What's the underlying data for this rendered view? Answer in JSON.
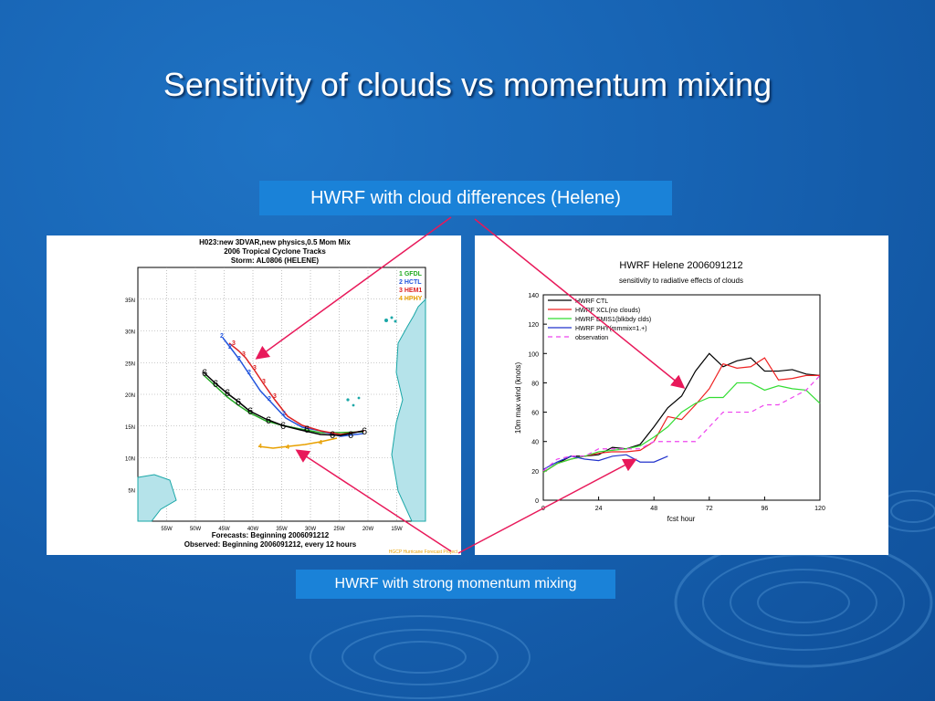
{
  "slide": {
    "title": "Sensitivity of clouds vs momentum mixing",
    "label_top": "HWRF with cloud differences (Helene)",
    "label_bottom": "HWRF with strong momentum mixing"
  },
  "map": {
    "header_1": "H023:new 3DVAR,new physics,0.5 Mom Mix",
    "header_2": "2006 Tropical Cyclone Tracks",
    "header_3": "Storm: AL0806 (HELENE)",
    "legend": [
      {
        "num": "1",
        "name": "GFDL",
        "color": "#22aa22"
      },
      {
        "num": "2",
        "name": "HCTL",
        "color": "#2255dd"
      },
      {
        "num": "3",
        "name": "HEM1",
        "color": "#dd2222"
      },
      {
        "num": "4",
        "name": "HPHY",
        "color": "#e8a000"
      }
    ],
    "lat_labels": [
      "35N",
      "30N",
      "25N",
      "20N",
      "15N",
      "10N",
      "5N"
    ],
    "lon_labels": [
      "55W",
      "50W",
      "45W",
      "40W",
      "35W",
      "30W",
      "25W",
      "20W",
      "15W"
    ],
    "footer_1": "Forecasts: Beginning 2006091212",
    "footer_2": "Observed: Beginning 2006091212, every 12 hours",
    "credit": "HGCP Hurricane Forecast Project"
  },
  "chart_data": {
    "type": "line",
    "title": "HWRF  Helene 2006091212",
    "subtitle": "sensitivity to radiative effects of clouds",
    "xlabel": "fcst hour",
    "ylabel": "10m max wind (knots)",
    "xlim": [
      0,
      120
    ],
    "ylim": [
      0,
      140
    ],
    "x_ticks": [
      0,
      24,
      48,
      72,
      96,
      120
    ],
    "y_ticks": [
      0,
      20,
      40,
      60,
      80,
      100,
      120,
      140
    ],
    "legend_position": "top-left",
    "series": [
      {
        "name": "HWRF CTL",
        "color": "#000000",
        "dash": "",
        "x": [
          0,
          6,
          12,
          18,
          24,
          30,
          36,
          42,
          48,
          54,
          60,
          66,
          72,
          78,
          84,
          90,
          96,
          102,
          108,
          114,
          120
        ],
        "y": [
          19,
          25,
          30,
          30,
          31,
          36,
          35,
          38,
          50,
          63,
          71,
          88,
          100,
          91,
          95,
          97,
          88,
          88,
          89,
          86,
          85
        ]
      },
      {
        "name": "HWRF XCL(no clouds)",
        "color": "#ee2222",
        "dash": "",
        "x": [
          0,
          6,
          12,
          18,
          24,
          30,
          36,
          42,
          48,
          54,
          60,
          66,
          72,
          78,
          84,
          90,
          96,
          102,
          108,
          114,
          120
        ],
        "y": [
          19,
          25,
          28,
          30,
          32,
          33,
          33,
          34,
          40,
          57,
          55,
          65,
          76,
          93,
          90,
          91,
          97,
          82,
          83,
          85,
          85
        ]
      },
      {
        "name": "HWRF EMIS1(blkbdy clds)",
        "color": "#33dd33",
        "dash": "",
        "x": [
          0,
          6,
          12,
          18,
          24,
          30,
          36,
          42,
          48,
          54,
          60,
          66,
          72,
          78,
          84,
          90,
          96,
          102,
          108,
          114,
          120
        ],
        "y": [
          19,
          25,
          28,
          30,
          33,
          34,
          35,
          37,
          43,
          50,
          60,
          66,
          70,
          70,
          80,
          80,
          75,
          78,
          76,
          75,
          66
        ]
      },
      {
        "name": "HWRF PHY(mmmix=1.+)",
        "color": "#2233cc",
        "dash": "",
        "x": [
          0,
          6,
          12,
          18,
          24,
          30,
          36,
          42,
          48,
          54
        ],
        "y": [
          21,
          26,
          30,
          28,
          27,
          30,
          31,
          26,
          26,
          30
        ]
      },
      {
        "name": "observation",
        "color": "#ee44ee",
        "dash": "5,4",
        "x": [
          0,
          6,
          12,
          18,
          24,
          30,
          36,
          42,
          48,
          54,
          60,
          66,
          72,
          78,
          84,
          90,
          96,
          102,
          108,
          114,
          120
        ],
        "y": [
          20,
          28,
          30,
          30,
          35,
          35,
          35,
          35,
          40,
          40,
          40,
          40,
          50,
          60,
          60,
          60,
          65,
          65,
          70,
          75,
          85
        ]
      }
    ]
  }
}
